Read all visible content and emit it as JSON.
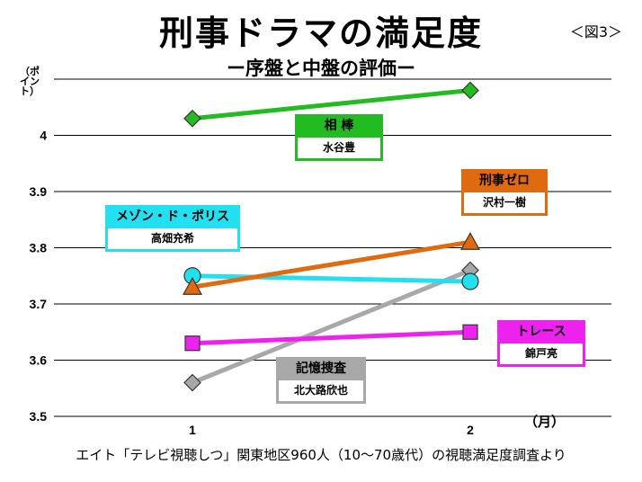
{
  "title": "刑事ドラマの満足度",
  "subtitle": "ー序盤と中盤の評価ー",
  "figure_label": "＜図3＞",
  "y_unit": "（ポイント）",
  "x_unit": "（月）",
  "source": "エイト「テレビ視聴しつ」関東地区960人（10〜70歳代）の視聴満足度調査より",
  "chart_data": {
    "type": "line",
    "categories": [
      "1",
      "2"
    ],
    "ylim": [
      3.5,
      4.1
    ],
    "yticks": [
      "3.5",
      "3.6",
      "3.7",
      "3.8",
      "3.9",
      "4"
    ],
    "grid": true,
    "series": [
      {
        "name": "相 棒",
        "sublabel": "水谷豊",
        "color": "#22bb22",
        "marker": "diamond",
        "values": [
          4.03,
          4.08
        ]
      },
      {
        "name": "刑事ゼロ",
        "sublabel": "沢村一樹",
        "color": "#e06a10",
        "marker": "triangle",
        "values": [
          3.73,
          3.81
        ]
      },
      {
        "name": "メゾン・ド・ポリス",
        "sublabel": "高畑充希",
        "color": "#22e0f0",
        "marker": "circle",
        "values": [
          3.75,
          3.74
        ]
      },
      {
        "name": "トレース",
        "sublabel": "錦戸亮",
        "color": "#ee22ee",
        "marker": "square",
        "values": [
          3.63,
          3.65
        ]
      },
      {
        "name": "記憶捜査",
        "sublabel": "北大路欣也",
        "color": "#a8a8a8",
        "marker": "diamond",
        "values": [
          3.56,
          3.76
        ]
      }
    ]
  }
}
